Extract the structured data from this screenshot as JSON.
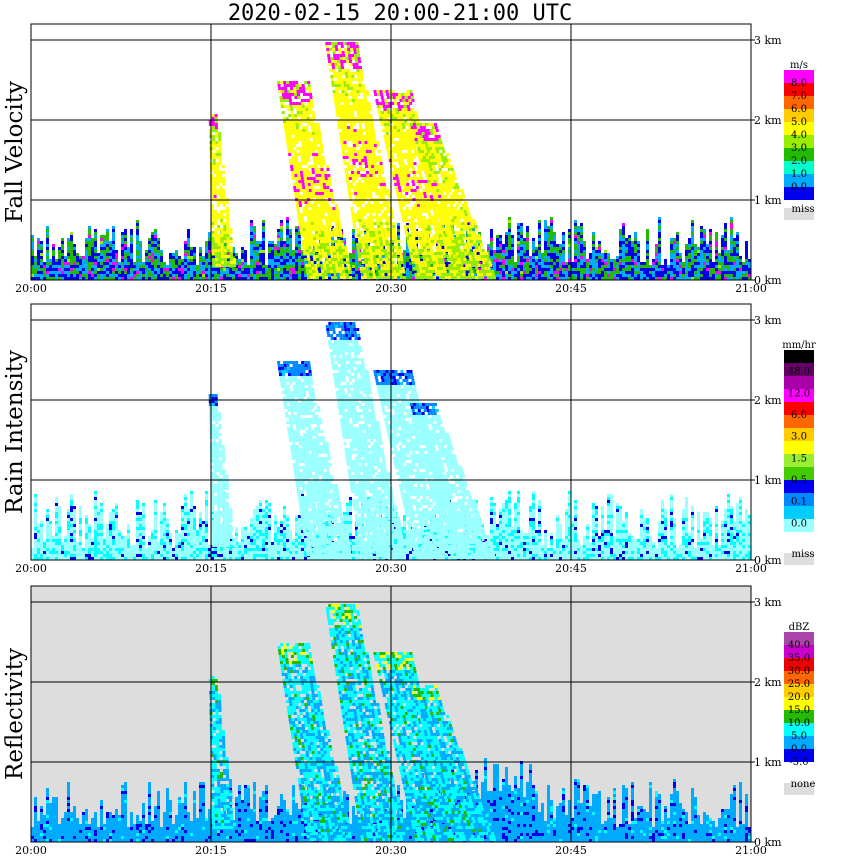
{
  "title": "2020-02-15   20:00-21:00 UTC",
  "chart_data": [
    {
      "type": "heatmap",
      "panel_title": "Fall Velocity",
      "x_ticks": [
        "20:00",
        "20:15",
        "20:30",
        "20:45",
        "21:00"
      ],
      "y_ticks": [
        "0 km",
        "1 km",
        "2 km",
        "3 km"
      ],
      "legend_unit": "m/s",
      "legend_levels": [
        "8.0",
        "7.0",
        "6.0",
        "5.0",
        "4.0",
        "3.0",
        "2.0",
        "1.0",
        "0.0"
      ],
      "legend_colors": [
        "#ff00ff",
        "#ff0000",
        "#ff6600",
        "#ffcc00",
        "#ffff00",
        "#99ee00",
        "#22bb00",
        "#00ffcc",
        "#00aaff",
        "#0000ee"
      ],
      "missing_label": "miss",
      "missing_color": "#dddddd",
      "xlim": [
        "20:00",
        "21:00"
      ],
      "ylim_km": [
        0,
        3.15
      ]
    },
    {
      "type": "heatmap",
      "panel_title": "Rain Intensity",
      "x_ticks": [
        "20:00",
        "20:15",
        "20:30",
        "20:45",
        "21:00"
      ],
      "y_ticks": [
        "0 km",
        "1 km",
        "2 km",
        "3 km"
      ],
      "legend_unit": "mm/hr",
      "legend_levels": [
        "48.0",
        "12.0",
        "6.0",
        "3.0",
        "1.5",
        "0.5",
        "0.1",
        "0.0"
      ],
      "legend_colors": [
        "#000000",
        "#660066",
        "#aa00aa",
        "#ff00ff",
        "#ff0000",
        "#ff6600",
        "#ffcc00",
        "#ffff00",
        "#99ee33",
        "#44cc00",
        "#0000ee",
        "#0088ff",
        "#00ccff",
        "#99ffff",
        "#ffffff"
      ],
      "missing_label": "miss",
      "missing_color": "#dddddd",
      "xlim": [
        "20:00",
        "21:00"
      ],
      "ylim_km": [
        0,
        3.15
      ]
    },
    {
      "type": "heatmap",
      "panel_title": "Reflectivity",
      "x_ticks": [
        "20:00",
        "20:15",
        "20:30",
        "20:45",
        "21:00"
      ],
      "y_ticks": [
        "0 km",
        "1 km",
        "2 km",
        "3 km"
      ],
      "legend_unit": "dBZ",
      "legend_levels": [
        "40.0",
        "35.0",
        "30.0",
        "25.0",
        "20.0",
        "15.0",
        "10.0",
        "5.0",
        "0.0",
        "-5.0"
      ],
      "legend_colors": [
        "#aa44aa",
        "#cc00cc",
        "#ee0000",
        "#ff6600",
        "#ffcc00",
        "#ffff00",
        "#22bb00",
        "#00ffff",
        "#00aaff",
        "#0000ee",
        "#ffffff"
      ],
      "missing_label": "none",
      "missing_color": "#dddddd",
      "xlim": [
        "20:00",
        "21:00"
      ],
      "ylim_km": [
        0,
        3.15
      ]
    }
  ]
}
